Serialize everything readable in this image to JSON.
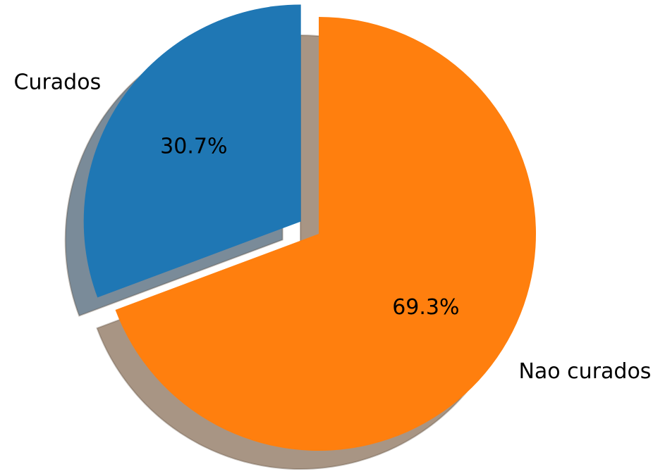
{
  "chart_data": {
    "type": "pie",
    "labels": [
      "Curados",
      "Nao curados"
    ],
    "values": [
      30.7,
      69.3
    ],
    "percent_labels": [
      "30.7%",
      "69.3%"
    ],
    "colors": [
      "#1f77b4",
      "#ff7f0e"
    ],
    "shadow_colors": [
      "#7a8b99",
      "#a89584"
    ],
    "explode": [
      0.1,
      0
    ],
    "start_angle_deg": 90,
    "direction": "counterclockwise",
    "shadow": true,
    "legend": "none"
  }
}
